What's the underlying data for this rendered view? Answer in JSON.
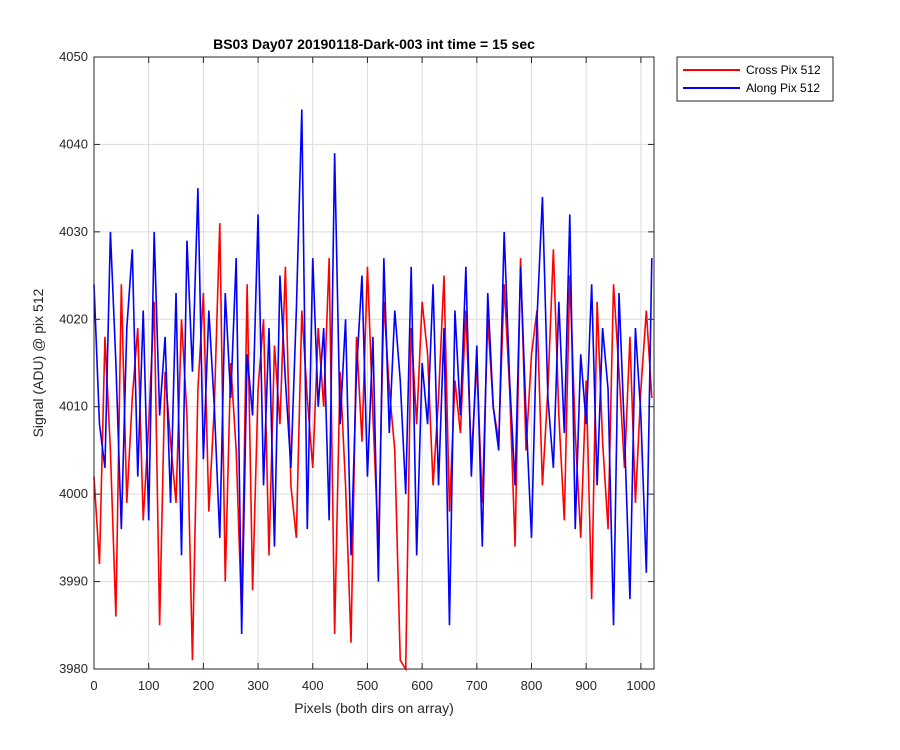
{
  "chart_data": {
    "type": "line",
    "title": "BS03 Day07 20190118-Dark-003 int time = 15 sec",
    "xlabel": "Pixels (both dirs on array)",
    "ylabel": "Signal (ADU) @ pix 512",
    "xlim": [
      0,
      1024
    ],
    "ylim": [
      3980,
      4050
    ],
    "xticks": [
      0,
      100,
      200,
      300,
      400,
      500,
      600,
      700,
      800,
      900,
      1000
    ],
    "yticks": [
      3980,
      3990,
      4000,
      4010,
      4020,
      4030,
      4040,
      4050
    ],
    "grid": true,
    "legend_position": "outside top-right",
    "x": [
      0,
      10,
      20,
      30,
      40,
      50,
      60,
      70,
      80,
      90,
      100,
      110,
      120,
      130,
      140,
      150,
      160,
      170,
      180,
      190,
      200,
      210,
      220,
      230,
      240,
      250,
      260,
      270,
      280,
      290,
      300,
      310,
      320,
      330,
      340,
      350,
      360,
      370,
      380,
      390,
      400,
      410,
      420,
      430,
      440,
      450,
      460,
      470,
      480,
      490,
      500,
      510,
      520,
      530,
      540,
      550,
      560,
      570,
      580,
      590,
      600,
      610,
      620,
      630,
      640,
      650,
      660,
      670,
      680,
      690,
      700,
      710,
      720,
      730,
      740,
      750,
      760,
      770,
      780,
      790,
      800,
      810,
      820,
      830,
      840,
      850,
      860,
      870,
      880,
      890,
      900,
      910,
      920,
      930,
      940,
      950,
      960,
      970,
      980,
      990,
      1000,
      1010,
      1020
    ],
    "series": [
      {
        "name": "Cross Pix 512",
        "color": "#ff0000",
        "values": [
          4002,
          3992,
          4018,
          4005,
          3986,
          4024,
          3999,
          4011,
          4019,
          3997,
          4008,
          4022,
          3985,
          4014,
          4006,
          3999,
          4020,
          4009,
          3981,
          4012,
          4023,
          3998,
          4010,
          4031,
          3990,
          4015,
          4005,
          3986,
          4024,
          3989,
          4012,
          4020,
          3993,
          4017,
          4008,
          4026,
          4001,
          3995,
          4021,
          4011,
          4003,
          4019,
          4010,
          4027,
          3984,
          4014,
          4001,
          3983,
          4018,
          4006,
          4026,
          4009,
          3994,
          4022,
          4012,
          4005,
          3981,
          3980,
          4019,
          4008,
          4022,
          4016,
          4001,
          4011,
          4025,
          3998,
          4013,
          4007,
          4021,
          4004,
          4015,
          3999,
          4020,
          4010,
          4006,
          4024,
          4012,
          3994,
          4027,
          4005,
          4016,
          4021,
          4001,
          4012,
          4028,
          4009,
          3997,
          4025,
          4007,
          3995,
          4013,
          3988,
          4022,
          4006,
          3996,
          4024,
          4014,
          4003,
          4018,
          3999,
          4012,
          4021,
          4011
        ]
      },
      {
        "name": "Along Pix 512",
        "color": "#0000ff",
        "values": [
          4024,
          4008,
          4003,
          4030,
          4015,
          3996,
          4019,
          4028,
          4002,
          4021,
          3997,
          4030,
          4009,
          4018,
          3999,
          4023,
          3993,
          4029,
          4014,
          4035,
          4004,
          4021,
          4010,
          3995,
          4023,
          4011,
          4027,
          3984,
          4016,
          4009,
          4032,
          4001,
          4019,
          3994,
          4025,
          4013,
          4003,
          4021,
          4044,
          3996,
          4027,
          4010,
          4019,
          3997,
          4039,
          4008,
          4020,
          3993,
          4014,
          4025,
          4002,
          4018,
          3990,
          4027,
          4007,
          4021,
          4013,
          4000,
          4026,
          3993,
          4015,
          4008,
          4024,
          4001,
          4019,
          3985,
          4021,
          4009,
          4026,
          4002,
          4017,
          3994,
          4023,
          4010,
          4005,
          4030,
          4013,
          4001,
          4026,
          4009,
          3995,
          4020,
          4034,
          4011,
          4003,
          4022,
          4007,
          4032,
          3996,
          4016,
          4008,
          4024,
          4001,
          4019,
          4012,
          3985,
          4023,
          4007,
          3988,
          4019,
          4009,
          3991,
          4027
        ]
      }
    ]
  }
}
